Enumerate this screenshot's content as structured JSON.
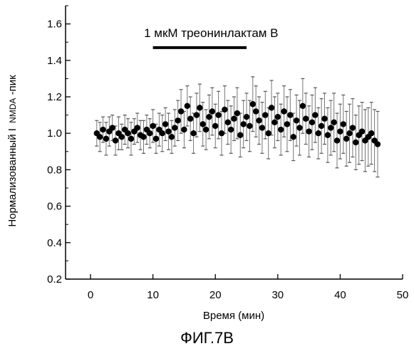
{
  "figure_caption": "ФИГ.7В",
  "chart_data": {
    "type": "scatter",
    "title": "",
    "xlabel": "Время (мин)",
    "ylabel_main": "Нормализованный I",
    "ylabel_sub": "NMDA",
    "ylabel_suffix": "-пик",
    "xlim": [
      -4,
      50
    ],
    "ylim": [
      0.2,
      1.7
    ],
    "xticks": [
      0,
      10,
      20,
      30,
      40,
      50
    ],
    "yticks": [
      0.2,
      0.4,
      0.6,
      0.8,
      1.0,
      1.2,
      1.4,
      1.6
    ],
    "ytick_labels": [
      "0.2",
      "0.4",
      "0.6",
      "0.8",
      "1.0",
      "1.2",
      "1.4",
      "1.6"
    ],
    "grid": false,
    "annotations": [
      {
        "text": "1 мкМ треонинлактам В",
        "x_start": 10,
        "x_end": 25,
        "bar_y": 1.47
      }
    ],
    "series": [
      {
        "error_bars": true,
        "x": [
          1.0,
          1.5,
          2.0,
          2.5,
          3.0,
          3.5,
          4.0,
          4.5,
          5.0,
          5.5,
          6.0,
          6.5,
          7.0,
          7.5,
          8.0,
          8.5,
          9.0,
          9.5,
          10.0,
          10.5,
          11.0,
          11.5,
          12.0,
          12.5,
          13.0,
          13.5,
          14.0,
          14.5,
          15.0,
          15.5,
          16.0,
          16.5,
          17.0,
          17.5,
          18.0,
          18.5,
          19.0,
          19.5,
          20.0,
          20.5,
          21.0,
          21.5,
          22.0,
          22.5,
          23.0,
          23.5,
          24.0,
          24.5,
          25.0,
          25.5,
          26.0,
          26.5,
          27.0,
          27.5,
          28.0,
          28.5,
          29.0,
          29.5,
          30.0,
          30.5,
          31.0,
          31.5,
          32.0,
          32.5,
          33.0,
          33.5,
          34.0,
          34.5,
          35.0,
          35.5,
          36.0,
          36.5,
          37.0,
          37.5,
          38.0,
          38.5,
          39.0,
          39.5,
          40.0,
          40.5,
          41.0,
          41.5,
          42.0,
          42.5,
          43.0,
          43.5,
          44.0,
          44.5,
          45.0,
          45.5,
          46.0
        ],
        "y": [
          1.0,
          0.98,
          1.02,
          0.97,
          1.01,
          1.03,
          0.96,
          1.0,
          0.98,
          1.02,
          1.0,
          0.97,
          1.01,
          1.03,
          0.99,
          0.98,
          1.02,
          1.0,
          1.04,
          0.97,
          1.02,
          1.0,
          1.05,
          1.01,
          0.98,
          1.03,
          1.07,
          1.12,
          1.02,
          1.15,
          1.08,
          1.0,
          1.1,
          1.14,
          1.05,
          1.02,
          1.09,
          1.12,
          1.04,
          1.1,
          1.0,
          1.13,
          1.06,
          1.02,
          1.08,
          1.11,
          0.99,
          1.05,
          1.09,
          1.04,
          1.16,
          1.12,
          1.07,
          1.03,
          1.1,
          1.0,
          1.14,
          1.06,
          1.09,
          1.02,
          1.12,
          1.05,
          1.1,
          0.98,
          1.07,
          1.03,
          1.15,
          1.08,
          1.01,
          1.06,
          1.1,
          1.0,
          1.04,
          1.08,
          0.99,
          1.03,
          1.06,
          0.96,
          1.01,
          1.05,
          0.97,
          1.0,
          1.03,
          0.95,
          0.99,
          1.01,
          0.96,
          0.98,
          1.0,
          0.96,
          0.94
        ],
        "err": [
          0.07,
          0.08,
          0.07,
          0.09,
          0.08,
          0.07,
          0.08,
          0.09,
          0.07,
          0.08,
          0.08,
          0.09,
          0.07,
          0.08,
          0.08,
          0.09,
          0.08,
          0.08,
          0.09,
          0.08,
          0.09,
          0.1,
          0.09,
          0.1,
          0.09,
          0.1,
          0.11,
          0.12,
          0.1,
          0.11,
          0.12,
          0.11,
          0.12,
          0.13,
          0.12,
          0.11,
          0.12,
          0.13,
          0.12,
          0.13,
          0.12,
          0.13,
          0.12,
          0.13,
          0.12,
          0.14,
          0.12,
          0.13,
          0.13,
          0.14,
          0.15,
          0.14,
          0.13,
          0.14,
          0.13,
          0.14,
          0.15,
          0.14,
          0.13,
          0.14,
          0.14,
          0.15,
          0.14,
          0.13,
          0.14,
          0.15,
          0.15,
          0.14,
          0.14,
          0.15,
          0.15,
          0.14,
          0.15,
          0.14,
          0.15,
          0.15,
          0.16,
          0.15,
          0.15,
          0.16,
          0.15,
          0.16,
          0.16,
          0.15,
          0.16,
          0.16,
          0.17,
          0.16,
          0.17,
          0.17,
          0.18
        ]
      }
    ]
  }
}
